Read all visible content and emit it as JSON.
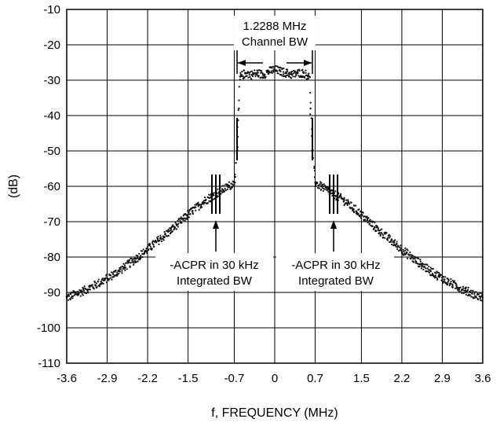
{
  "chart_data": {
    "type": "scatter",
    "title": "",
    "xlabel": "f, FREQUENCY (MHz)",
    "ylabel": "(dB)",
    "xlim": [
      -3.6,
      3.6
    ],
    "ylim": [
      -110,
      -10
    ],
    "grid": true,
    "x_ticks": [
      -3.6,
      -2.9,
      -2.2,
      -1.5,
      -0.7,
      0,
      0.7,
      1.5,
      2.2,
      2.9,
      3.6
    ],
    "x_tick_labels": [
      "-3.6",
      "-2.9",
      "-2.2",
      "-1.5",
      "-0.7",
      "0",
      "0.7",
      "1.5",
      "2.2",
      "2.9",
      "3.6"
    ],
    "y_ticks": [
      -10,
      -20,
      -30,
      -40,
      -50,
      -60,
      -70,
      -80,
      -90,
      -100,
      -110
    ],
    "y_tick_labels": [
      "-10",
      "-20",
      "-30",
      "-40",
      "-50",
      "-60",
      "-70",
      "-80",
      "-90",
      "-100",
      "-110"
    ],
    "series": [
      {
        "color": "#111111",
        "x": [
          -3.6,
          -3.3,
          -3.0,
          -2.7,
          -2.4,
          -2.1,
          -1.8,
          -1.5,
          -1.2,
          -1.0,
          -0.9,
          -0.8,
          -0.7,
          -0.65,
          -0.62,
          -0.6,
          -0.5,
          -0.4,
          -0.3,
          -0.2,
          -0.1,
          0,
          0.1,
          0.2,
          0.3,
          0.4,
          0.5,
          0.6,
          0.62,
          0.65,
          0.7,
          0.8,
          0.9,
          1.0,
          1.2,
          1.5,
          1.8,
          2.1,
          2.4,
          2.7,
          3.0,
          3.3,
          3.6
        ],
        "y": [
          -91.5,
          -89.5,
          -87,
          -84,
          -80.5,
          -76.5,
          -72.5,
          -68,
          -64,
          -62,
          -61,
          -60,
          -59,
          -50,
          -38,
          -29,
          -28,
          -28.5,
          -28,
          -28.5,
          -27.5,
          -27,
          -27.5,
          -28,
          -28.5,
          -28,
          -28,
          -29,
          -38,
          -50,
          -59,
          -60,
          -61,
          -62,
          -64,
          -68,
          -72.5,
          -76.5,
          -80.5,
          -84,
          -87,
          -89.5,
          -91.5
        ]
      }
    ],
    "annotations": {
      "channel_bw_line1": "1.2288 MHz",
      "channel_bw_line2": "Channel BW",
      "acpr_left_line1": "-ACPR in 30 kHz",
      "acpr_left_line2": "Integrated BW",
      "acpr_right_line1": "-ACPR in 30 kHz",
      "acpr_right_line2": "Integrated BW"
    }
  }
}
